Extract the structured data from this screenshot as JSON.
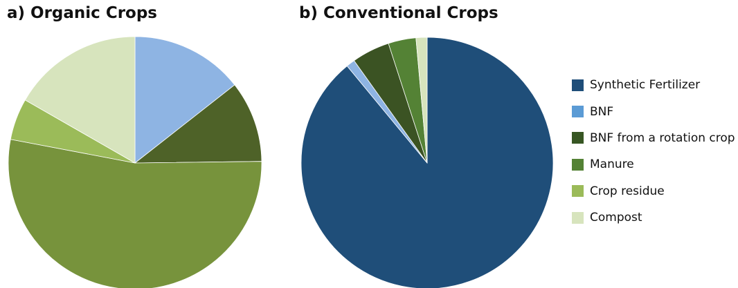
{
  "chart_data": [
    {
      "type": "pie",
      "title": "a) Organic Crops",
      "categories": [
        "Synthetic Fertilizer",
        "BNF",
        "BNF from a rotation crop",
        "Manure",
        "Crop residue",
        "Compost"
      ],
      "values": [
        0,
        14.4,
        10.4,
        53.2,
        5.3,
        16.7
      ],
      "colors": [
        "#1f4e79",
        "#8eb4e3",
        "#4e6228",
        "#77933c",
        "#9bbb59",
        "#d7e4bd"
      ],
      "unit": "%",
      "start_angle": "12 o'clock",
      "direction": "clockwise"
    },
    {
      "type": "pie",
      "title": "b) Conventional Crops",
      "categories": [
        "Synthetic Fertilizer",
        "BNF",
        "BNF from a rotation crop",
        "Manure",
        "Crop residue",
        "Compost"
      ],
      "values": [
        87.7,
        1.1,
        4.8,
        3.5,
        0,
        1.4
      ],
      "colors": [
        "#1f4e79",
        "#8eb4e3",
        "#3b5323",
        "#548235",
        "#9bbb59",
        "#d7e4bd"
      ],
      "unit": "%",
      "start_angle": "12 o'clock",
      "direction": "clockwise"
    }
  ],
  "legend": {
    "position": "right",
    "items": [
      {
        "label": "Synthetic Fertilizer",
        "color": "#1f4e79"
      },
      {
        "label": "BNF",
        "color": "#5b9bd5"
      },
      {
        "label": "BNF from a rotation crop",
        "color": "#375623"
      },
      {
        "label": "Manure",
        "color": "#548235"
      },
      {
        "label": "Crop residue",
        "color": "#9bbb59"
      },
      {
        "label": "Compost",
        "color": "#d7e4bd"
      }
    ]
  }
}
